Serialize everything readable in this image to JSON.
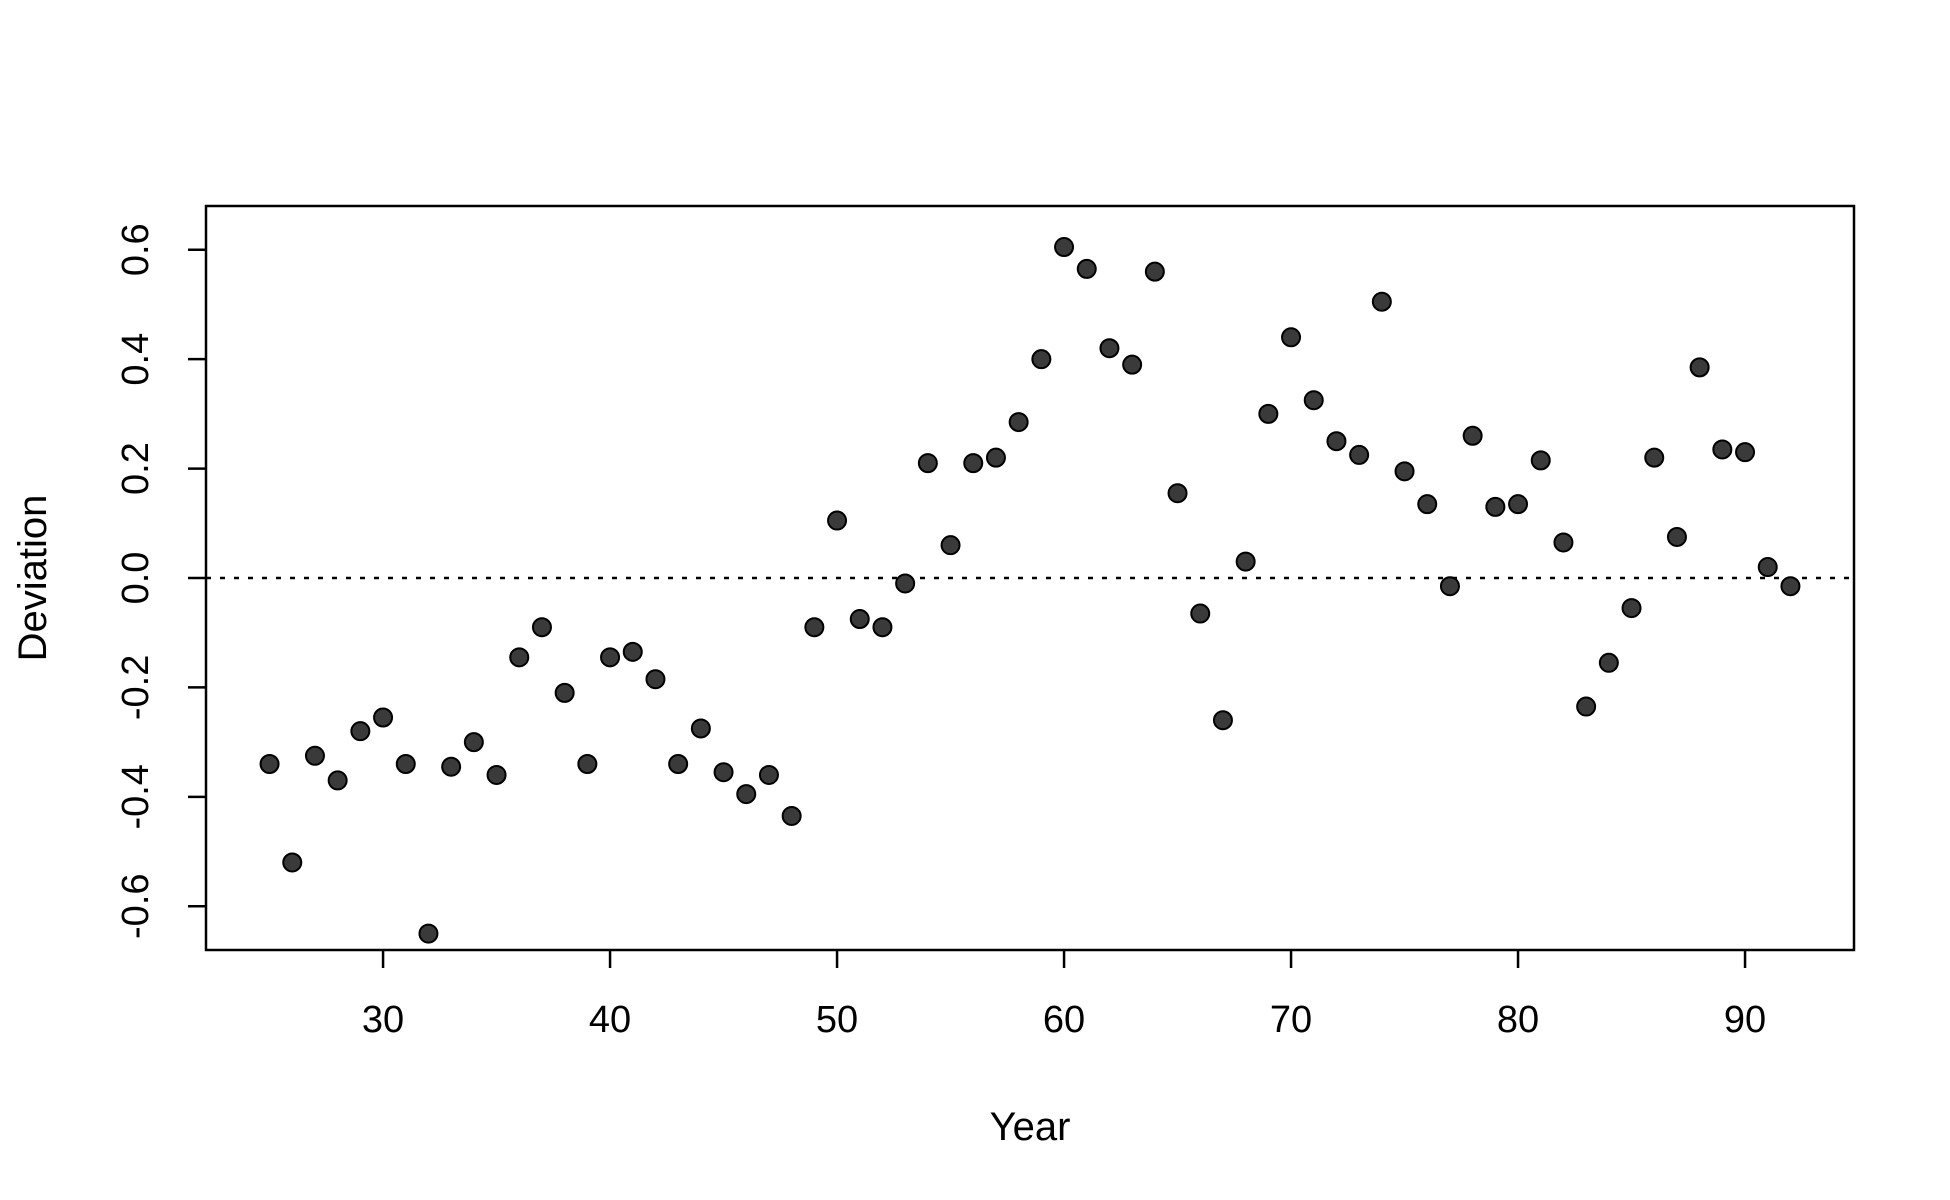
{
  "chart_data": {
    "type": "scatter",
    "title": "",
    "xlabel": "Year",
    "ylabel": "Deviation",
    "xlim": [
      22.2,
      94.8
    ],
    "ylim": [
      -0.68,
      0.68
    ],
    "xticks": [
      30,
      40,
      50,
      60,
      70,
      80,
      90
    ],
    "yticks": [
      -0.6,
      -0.4,
      -0.2,
      0.0,
      0.2,
      0.4,
      0.6
    ],
    "ytick_labels": [
      "-0.6",
      "-0.4",
      "-0.2",
      "0.0",
      "0.2",
      "0.4",
      "0.6"
    ],
    "grid": false,
    "reference_line": {
      "y": 0,
      "style": "dotted"
    },
    "point_color": "#3a3a3a",
    "x": [
      25,
      26,
      27,
      28,
      29,
      30,
      31,
      32,
      33,
      34,
      35,
      36,
      37,
      38,
      39,
      40,
      41,
      42,
      43,
      44,
      45,
      46,
      47,
      48,
      49,
      50,
      51,
      52,
      53,
      54,
      55,
      56,
      57,
      58,
      59,
      60,
      61,
      62,
      63,
      64,
      65,
      66,
      67,
      68,
      69,
      70,
      71,
      72,
      73,
      74,
      75,
      76,
      77,
      78,
      79,
      80,
      81,
      82,
      83,
      84,
      85,
      86,
      87,
      88,
      89,
      90,
      91,
      92
    ],
    "y": [
      -0.34,
      -0.52,
      -0.325,
      -0.37,
      -0.28,
      -0.255,
      -0.34,
      -0.65,
      -0.345,
      -0.3,
      -0.36,
      -0.145,
      -0.09,
      -0.21,
      -0.34,
      -0.145,
      -0.135,
      -0.185,
      -0.34,
      -0.275,
      -0.355,
      -0.395,
      -0.36,
      -0.435,
      -0.09,
      0.105,
      -0.075,
      -0.09,
      -0.01,
      0.21,
      0.06,
      0.21,
      0.22,
      0.285,
      0.4,
      0.605,
      0.565,
      0.42,
      0.39,
      0.56,
      0.155,
      -0.065,
      -0.26,
      0.03,
      0.3,
      0.44,
      0.325,
      0.25,
      0.225,
      0.505,
      0.195,
      0.135,
      -0.015,
      0.26,
      0.13,
      0.135,
      0.215,
      0.065,
      -0.235,
      -0.155,
      -0.055,
      0.22,
      0.075,
      0.385,
      0.235,
      0.23,
      0.02,
      -0.015
    ]
  }
}
